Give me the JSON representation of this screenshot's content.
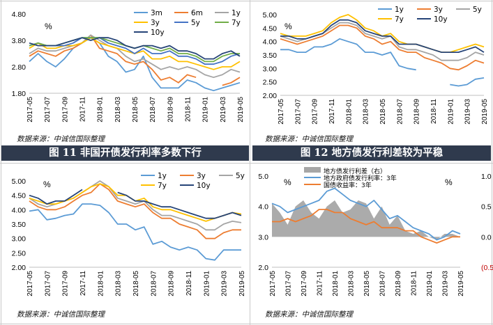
{
  "captions": {
    "fig11": "图 11  非国开债发行利率多数下行",
    "fig12": "图 12  地方债发行利差较为平稳"
  },
  "sources": {
    "p1": "数据来源：中诚信国际整理",
    "p2": "数据来源：中诚信国际整理",
    "p3": "数据来源：中诚信国际整理",
    "p4": "数据来源：中诚信国际整理"
  },
  "chart_data": [
    {
      "type": "line",
      "unit": "%",
      "x_ticks": [
        "2017-05",
        "2017-07",
        "2017-09",
        "2017-11",
        "2018-01",
        "2018-03",
        "2018-05",
        "2018-07",
        "2018-09",
        "2018-11",
        "2019-01",
        "2019-03",
        "2019-05"
      ],
      "y_ticks": [
        "4.80",
        "3.80",
        "2.80",
        "1.80"
      ],
      "ylim": [
        1.8,
        4.8
      ],
      "x": [
        "2017-05",
        "2017-06",
        "2017-07",
        "2017-08",
        "2017-09",
        "2017-10",
        "2017-11",
        "2017-12",
        "2018-01",
        "2018-02",
        "2018-03",
        "2018-04",
        "2018-05",
        "2018-06",
        "2018-07",
        "2018-08",
        "2018-09",
        "2018-10",
        "2018-11",
        "2018-12",
        "2019-01",
        "2019-02",
        "2019-03",
        "2019-04",
        "2019-05"
      ],
      "series": [
        {
          "name": "3m",
          "color": "#5b9bd5",
          "values": [
            3.0,
            3.3,
            3.0,
            2.8,
            3.1,
            3.5,
            3.7,
            3.9,
            3.7,
            3.2,
            3.0,
            2.6,
            2.7,
            3.2,
            2.4,
            2.0,
            2.0,
            2.0,
            2.3,
            2.2,
            2.0,
            1.9,
            2.0,
            2.1,
            2.2
          ]
        },
        {
          "name": "6m",
          "color": "#ed7d31",
          "values": [
            3.2,
            3.4,
            3.3,
            3.2,
            3.4,
            3.5,
            3.7,
            4.0,
            3.5,
            3.4,
            3.3,
            3.0,
            2.9,
            3.0,
            2.7,
            2.3,
            2.4,
            2.2,
            2.5,
            2.4,
            null,
            null,
            2.1,
            2.2,
            2.4
          ]
        },
        {
          "name": "1y",
          "color": "#a5a5a5",
          "values": [
            3.3,
            3.5,
            3.4,
            3.4,
            3.5,
            3.6,
            3.7,
            4.0,
            3.8,
            3.6,
            3.5,
            3.2,
            3.0,
            3.1,
            2.9,
            2.7,
            2.8,
            2.7,
            2.8,
            2.7,
            2.5,
            2.4,
            2.5,
            2.7,
            2.6
          ]
        },
        {
          "name": "3y",
          "color": "#ffc000",
          "values": [
            3.5,
            3.7,
            3.5,
            3.5,
            3.6,
            3.6,
            3.7,
            3.9,
            3.7,
            3.6,
            3.5,
            3.4,
            3.3,
            3.4,
            3.1,
            3.1,
            3.2,
            3.0,
            3.0,
            2.9,
            2.8,
            2.7,
            2.8,
            2.8,
            3.0
          ]
        },
        {
          "name": "5y",
          "color": "#4472c4",
          "values": [
            3.6,
            3.7,
            3.6,
            3.6,
            3.6,
            3.7,
            3.9,
            3.9,
            3.9,
            3.7,
            3.6,
            3.5,
            3.3,
            3.5,
            3.3,
            3.3,
            3.4,
            3.2,
            3.2,
            3.1,
            2.9,
            2.9,
            3.0,
            3.2,
            3.3
          ]
        },
        {
          "name": "7y",
          "color": "#70ad47",
          "values": [
            3.6,
            3.7,
            3.6,
            3.6,
            3.7,
            3.8,
            3.9,
            3.9,
            3.9,
            3.8,
            3.7,
            3.6,
            3.5,
            3.6,
            3.5,
            3.4,
            3.5,
            3.3,
            3.3,
            3.2,
            3.0,
            3.0,
            3.2,
            3.3,
            3.3
          ]
        },
        {
          "name": "10y",
          "color": "#264478",
          "values": [
            3.7,
            3.6,
            3.6,
            3.6,
            3.7,
            3.8,
            3.9,
            3.8,
            3.9,
            3.9,
            3.8,
            3.6,
            3.5,
            3.6,
            3.6,
            3.5,
            3.6,
            3.4,
            3.4,
            3.3,
            3.1,
            3.1,
            3.3,
            3.4,
            3.2
          ]
        }
      ]
    },
    {
      "type": "line",
      "unit": "%",
      "x_ticks": [
        "2017-05",
        "2017-07",
        "2017-09",
        "2017-11",
        "2018-01",
        "2018-03",
        "2018-05",
        "2018-07",
        "2018-09",
        "2018-11",
        "2019-01",
        "2019-03",
        "2019-05"
      ],
      "y_ticks": [
        "5.00",
        "4.50",
        "4.00",
        "3.50",
        "3.00",
        "2.50",
        "2.00"
      ],
      "ylim": [
        2.0,
        5.0
      ],
      "x": [
        "2017-05",
        "2017-06",
        "2017-07",
        "2017-08",
        "2017-09",
        "2017-10",
        "2017-11",
        "2017-12",
        "2018-01",
        "2018-02",
        "2018-03",
        "2018-04",
        "2018-05",
        "2018-06",
        "2018-07",
        "2018-08",
        "2018-09",
        "2018-10",
        "2018-11",
        "2018-12",
        "2019-01",
        "2019-02",
        "2019-03",
        "2019-04",
        "2019-05"
      ],
      "series": [
        {
          "name": "1y",
          "color": "#5b9bd5",
          "values": [
            3.7,
            3.7,
            3.6,
            3.6,
            3.8,
            3.8,
            3.9,
            4.1,
            4.0,
            3.9,
            3.6,
            3.6,
            3.5,
            3.6,
            3.1,
            3.0,
            2.95,
            null,
            null,
            null,
            2.4,
            2.35,
            2.4,
            2.6,
            2.65
          ]
        },
        {
          "name": "3y",
          "color": "#ed7d31",
          "values": [
            4.1,
            4.0,
            3.9,
            4.0,
            4.1,
            4.2,
            4.4,
            4.6,
            4.6,
            4.5,
            4.2,
            4.1,
            3.9,
            4.0,
            3.7,
            3.6,
            3.6,
            3.4,
            3.3,
            3.2,
            3.0,
            2.95,
            3.1,
            3.3,
            3.2
          ]
        },
        {
          "name": "5y",
          "color": "#a5a5a5",
          "values": [
            4.2,
            4.1,
            4.0,
            4.1,
            4.2,
            4.3,
            4.5,
            4.7,
            4.7,
            4.6,
            4.3,
            4.2,
            4.1,
            4.2,
            3.8,
            3.7,
            3.7,
            3.6,
            3.5,
            3.3,
            3.3,
            3.3,
            3.4,
            3.6,
            3.5
          ]
        },
        {
          "name": "7y",
          "color": "#ffc000",
          "values": [
            4.3,
            4.2,
            4.2,
            4.2,
            4.3,
            4.4,
            4.7,
            4.9,
            5.0,
            4.8,
            4.5,
            4.4,
            4.2,
            4.3,
            4.0,
            3.9,
            3.9,
            3.8,
            3.7,
            3.6,
            3.6,
            3.7,
            3.8,
            3.9,
            3.8
          ]
        },
        {
          "name": "10y",
          "color": "#264478",
          "values": [
            4.2,
            4.2,
            4.1,
            4.1,
            4.2,
            4.3,
            4.6,
            4.8,
            4.8,
            4.7,
            4.4,
            4.3,
            4.2,
            4.2,
            3.9,
            3.9,
            3.9,
            3.8,
            3.7,
            3.6,
            3.6,
            3.6,
            3.7,
            3.8,
            3.6
          ]
        }
      ]
    },
    {
      "type": "line",
      "unit": "%",
      "x_ticks": [
        "2017-05",
        "2017-07",
        "2017-09",
        "2017-11",
        "2018-01",
        "2018-03",
        "2018-05",
        "2018-07",
        "2018-09",
        "2018-11",
        "2019-01",
        "2019-03",
        "2019-05"
      ],
      "y_ticks": [
        "5.00",
        "4.50",
        "4.00",
        "3.50",
        "3.00",
        "2.50",
        "2.00"
      ],
      "ylim": [
        2.0,
        5.0
      ],
      "x": [
        "2017-05",
        "2017-06",
        "2017-07",
        "2017-08",
        "2017-09",
        "2017-10",
        "2017-11",
        "2017-12",
        "2018-01",
        "2018-02",
        "2018-03",
        "2018-04",
        "2018-05",
        "2018-06",
        "2018-07",
        "2018-08",
        "2018-09",
        "2018-10",
        "2018-11",
        "2018-12",
        "2019-01",
        "2019-02",
        "2019-03",
        "2019-04",
        "2019-05"
      ],
      "series": [
        {
          "name": "1y",
          "color": "#5b9bd5",
          "values": [
            3.95,
            4.0,
            3.65,
            3.7,
            3.8,
            3.85,
            4.2,
            4.2,
            4.15,
            3.9,
            3.5,
            3.5,
            3.3,
            3.4,
            2.8,
            2.9,
            2.7,
            2.6,
            2.7,
            2.6,
            2.3,
            2.25,
            2.6,
            2.6,
            2.6
          ]
        },
        {
          "name": "3y",
          "color": "#ed7d31",
          "values": [
            4.3,
            4.1,
            4.0,
            4.0,
            4.1,
            4.3,
            4.5,
            4.6,
            4.9,
            4.7,
            4.3,
            4.2,
            4.1,
            4.2,
            3.9,
            3.7,
            3.7,
            3.5,
            3.4,
            3.3,
            3.0,
            3.0,
            3.2,
            3.3,
            3.3
          ]
        },
        {
          "name": "5y",
          "color": "#a5a5a5",
          "values": [
            4.4,
            4.2,
            4.1,
            4.2,
            4.3,
            4.4,
            4.6,
            4.8,
            5.0,
            4.8,
            4.4,
            4.3,
            4.2,
            4.3,
            4.0,
            3.8,
            3.8,
            3.7,
            3.6,
            3.5,
            3.3,
            3.3,
            3.5,
            3.6,
            3.55
          ]
        },
        {
          "name": "7y",
          "color": "#ffc000",
          "values": [
            4.4,
            4.3,
            4.2,
            4.2,
            4.3,
            4.4,
            4.6,
            4.8,
            4.9,
            4.8,
            4.5,
            4.5,
            4.3,
            4.4,
            4.1,
            4.0,
            4.0,
            3.9,
            3.8,
            3.7,
            3.6,
            3.7,
            3.8,
            3.9,
            3.85
          ]
        },
        {
          "name": "10y",
          "color": "#264478",
          "values": [
            4.5,
            4.4,
            4.2,
            4.3,
            4.3,
            4.5,
            4.7,
            null,
            null,
            null,
            4.6,
            4.5,
            4.3,
            4.3,
            4.2,
            4.1,
            4.1,
            4.0,
            3.9,
            3.8,
            3.7,
            3.7,
            3.8,
            3.9,
            3.8
          ]
        }
      ]
    },
    {
      "type": "line",
      "unit_left": "%",
      "unit_right": "%",
      "x_ticks": [
        "2017-05",
        "2017-07",
        "2017-09",
        "2017-11",
        "2018-01",
        "2018-03",
        "2018-05",
        "2018-07",
        "2018-09",
        "2018-11",
        "2019-01",
        "2019-03",
        "2019-05"
      ],
      "y_ticks": [
        "5.0",
        "4.0",
        "3.0",
        "2.0"
      ],
      "y2_ticks": [
        "1.0",
        "0.5",
        "0.0",
        "(0.5)"
      ],
      "ylim": [
        2.0,
        5.0
      ],
      "y2lim": [
        -0.5,
        1.0
      ],
      "x": [
        "2017-05",
        "2017-06",
        "2017-07",
        "2017-08",
        "2017-09",
        "2017-10",
        "2017-11",
        "2017-12",
        "2018-01",
        "2018-02",
        "2018-03",
        "2018-04",
        "2018-05",
        "2018-06",
        "2018-07",
        "2018-08",
        "2018-09",
        "2018-10",
        "2018-11",
        "2018-12",
        "2019-01",
        "2019-02",
        "2019-03",
        "2019-04",
        "2019-05"
      ],
      "series": [
        {
          "name": "地方债发行利差（右）",
          "color": "#a6a6a6",
          "type": "area",
          "axis": "right",
          "values": [
            0.55,
            0.4,
            0.2,
            0.5,
            0.6,
            0.4,
            0.3,
            0.5,
            0.6,
            0.4,
            0.45,
            0.6,
            0.55,
            0.3,
            0.5,
            0.2,
            0.35,
            0.1,
            0.05,
            0.1,
            0.0,
            -0.05,
            0.05,
            0.05,
            0.0
          ]
        },
        {
          "name": "地方政府债发行利率：3年",
          "color": "#5b9bd5",
          "axis": "left",
          "values": [
            4.1,
            4.0,
            3.8,
            3.9,
            4.0,
            4.1,
            4.2,
            4.5,
            4.6,
            4.4,
            4.2,
            4.1,
            4.0,
            4.2,
            3.9,
            3.6,
            3.7,
            3.5,
            3.3,
            3.2,
            3.1,
            2.9,
            3.0,
            3.2,
            3.1
          ]
        },
        {
          "name": "国债收益率：3年",
          "color": "#ed7d31",
          "axis": "left",
          "values": [
            3.5,
            3.5,
            3.6,
            3.5,
            3.6,
            3.7,
            3.9,
            3.9,
            3.8,
            3.8,
            3.6,
            3.5,
            3.4,
            3.5,
            3.3,
            3.3,
            3.3,
            3.2,
            3.2,
            3.0,
            2.9,
            2.8,
            2.9,
            3.0,
            3.0
          ]
        }
      ]
    }
  ]
}
